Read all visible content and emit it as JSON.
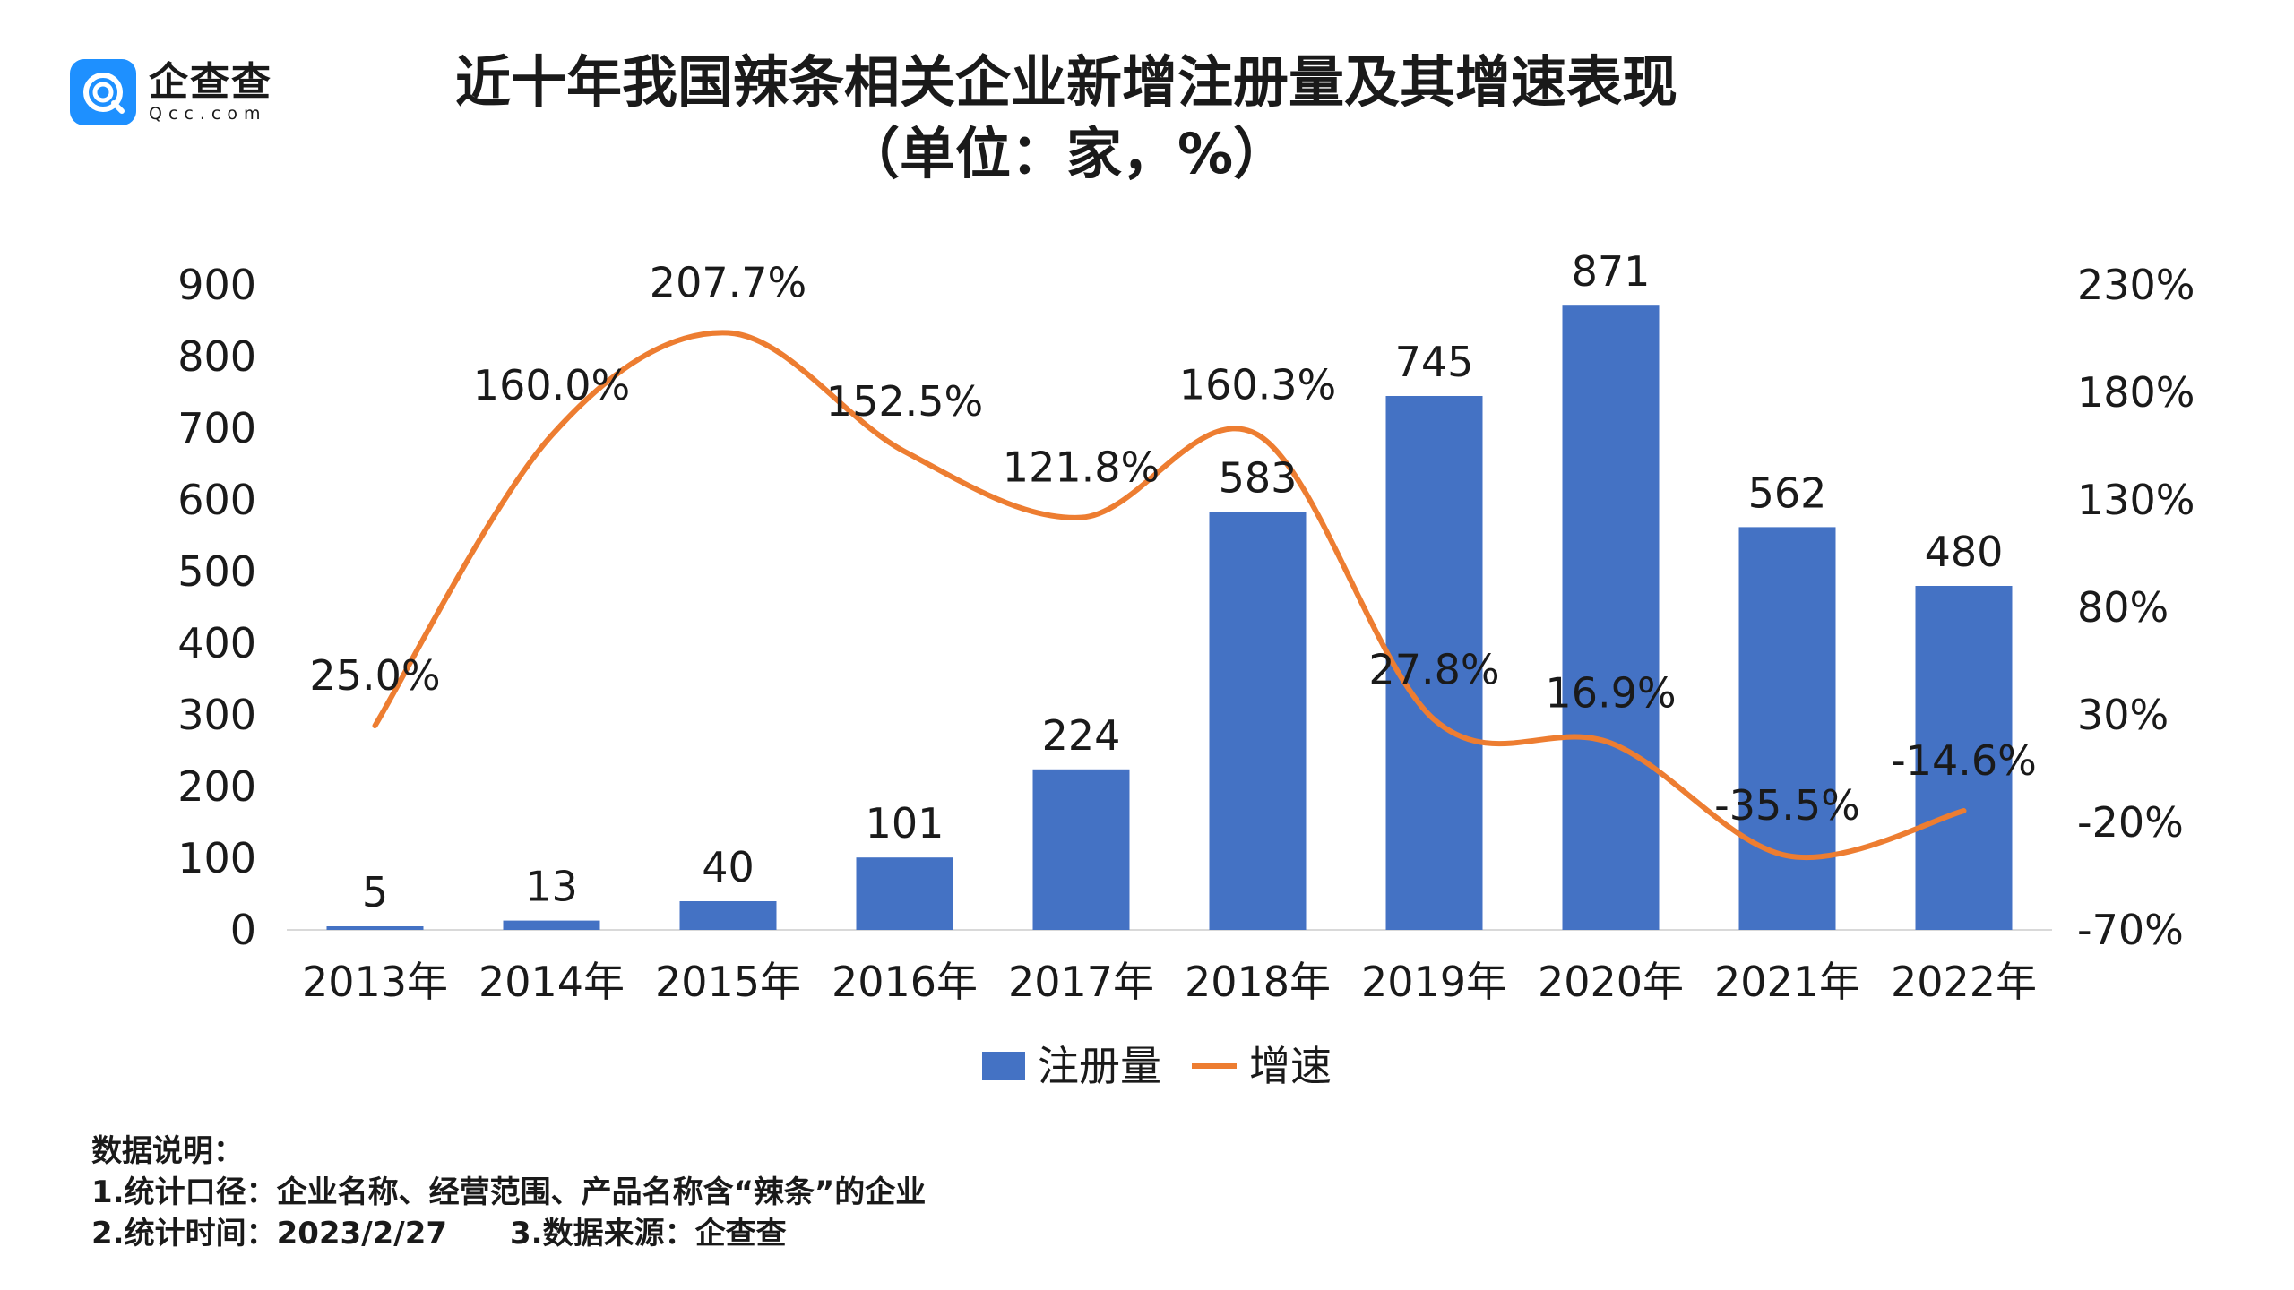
{
  "logo": {
    "name_cn": "企查查",
    "name_en": "Qcc.com",
    "color": "#1e90ff"
  },
  "title": {
    "line1": "近十年我国辣条相关企业新增注册量及其增速表现",
    "line2": "（单位：家，%）"
  },
  "chart_data": {
    "type": "bar",
    "categories": [
      "2013年",
      "2014年",
      "2015年",
      "2016年",
      "2017年",
      "2018年",
      "2019年",
      "2020年",
      "2021年",
      "2022年"
    ],
    "series": [
      {
        "name": "注册量",
        "type": "bar",
        "axis": "left",
        "color": "#4472c4",
        "values": [
          5,
          13,
          40,
          101,
          224,
          583,
          745,
          871,
          562,
          480
        ],
        "labels": [
          "5",
          "13",
          "40",
          "101",
          "224",
          "583",
          "745",
          "871",
          "562",
          "480"
        ]
      },
      {
        "name": "增速",
        "type": "line",
        "axis": "right",
        "color": "#ed7d31",
        "smooth": true,
        "values": [
          25.0,
          160.0,
          207.7,
          152.5,
          121.8,
          160.3,
          27.8,
          16.9,
          -35.5,
          -14.6
        ],
        "labels": [
          "25.0%",
          "160.0%",
          "207.7%",
          "152.5%",
          "121.8%",
          "160.3%",
          "27.8%",
          "16.9%",
          "-35.5%",
          "-14.6%"
        ]
      }
    ],
    "y_left": {
      "min": 0,
      "max": 900,
      "ticks": [
        "0",
        "100",
        "200",
        "300",
        "400",
        "500",
        "600",
        "700",
        "800",
        "900"
      ]
    },
    "y_right": {
      "min": -70,
      "max": 230,
      "ticks": [
        "-70%",
        "-20%",
        "30%",
        "80%",
        "130%",
        "180%",
        "230%"
      ]
    },
    "legend": {
      "position": "bottom",
      "items": [
        "注册量",
        "增速"
      ]
    },
    "grid": false
  },
  "notes": {
    "heading": "数据说明：",
    "line1": "1.统计口径：企业名称、经营范围、产品名称含“辣条”的企业",
    "line2a": "2.统计时间：2023/2/27",
    "line2b": "3.数据来源：企查查"
  }
}
